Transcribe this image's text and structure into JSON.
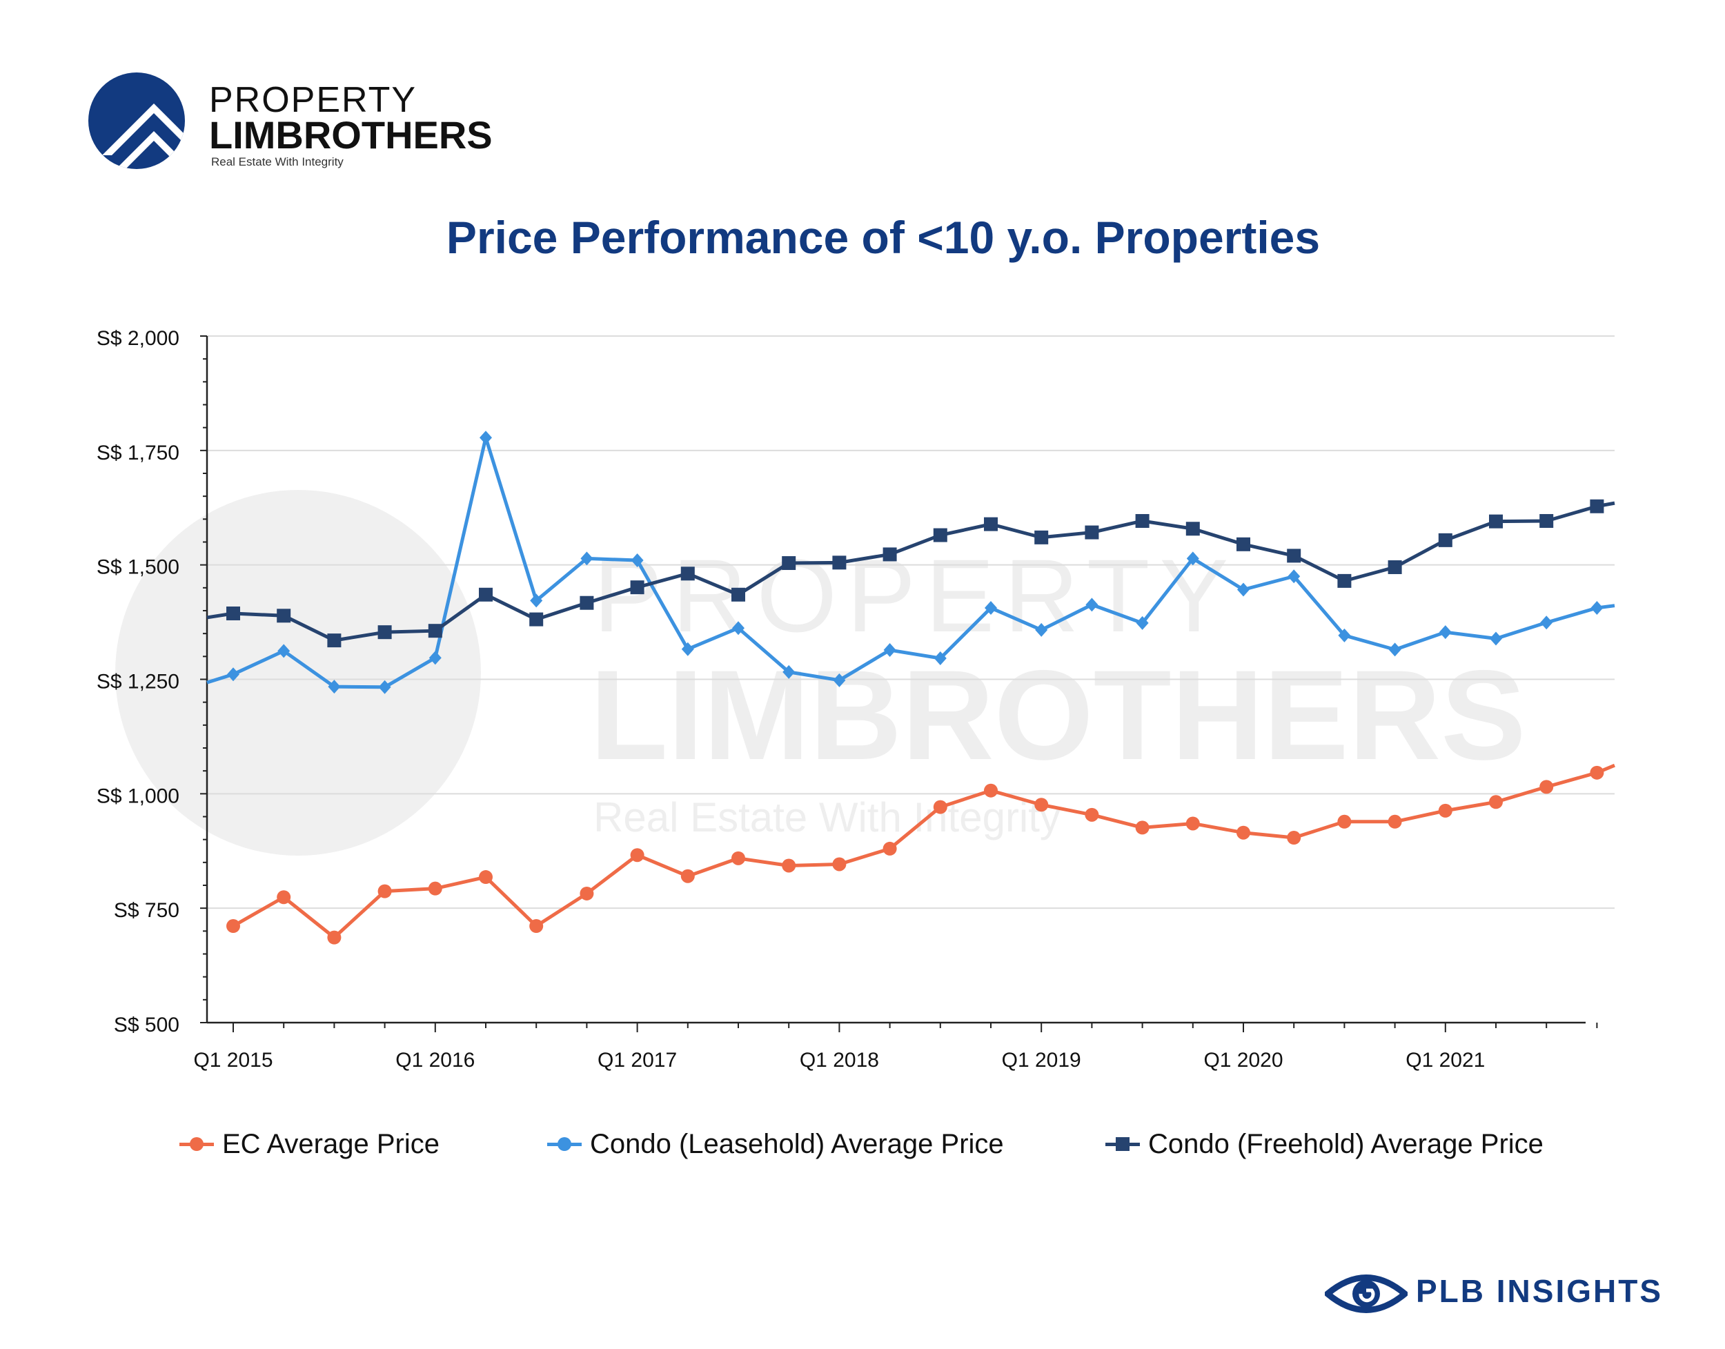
{
  "brand": {
    "logo_line1": "PROPERTY",
    "logo_line2": "LIMBROTHERS",
    "logo_tagline": "Real Estate With Integrity",
    "watermark_line1": "PROPERTY",
    "watermark_line2": "LIMBROTHERS",
    "watermark_tagline": "Real Estate With Integrity",
    "footer_text": "PLB INSIGHTS",
    "primary_color": "#123a80",
    "logo_icon": "chevron-roof-logo-icon",
    "footer_icon": "eye-logo-icon"
  },
  "chart_data": {
    "type": "line",
    "title": "Price Performance of <10 y.o. Properties",
    "xlabel": "",
    "ylabel": "",
    "ylim": [
      500,
      2000
    ],
    "y_ticks": [
      "S$ 500",
      "S$ 750",
      "S$ 1,000",
      "S$ 1,250",
      "S$ 1,500",
      "S$ 1,750",
      "S$ 2,000"
    ],
    "y_tick_values": [
      500,
      750,
      1000,
      1250,
      1500,
      1750,
      2000
    ],
    "x_tick_labels": [
      "Q1 2015",
      "Q1 2016",
      "Q1 2017",
      "Q1 2018",
      "Q1 2019",
      "Q1 2020",
      "Q1 2021"
    ],
    "categories": [
      "Q1 2015",
      "Q2 2015",
      "Q3 2015",
      "Q4 2015",
      "Q1 2016",
      "Q2 2016",
      "Q3 2016",
      "Q4 2016",
      "Q1 2017",
      "Q2 2017",
      "Q3 2017",
      "Q4 2017",
      "Q1 2018",
      "Q2 2018",
      "Q3 2018",
      "Q4 2018",
      "Q1 2019",
      "Q2 2019",
      "Q3 2019",
      "Q4 2019",
      "Q1 2020",
      "Q2 2020",
      "Q3 2020",
      "Q4 2020",
      "Q1 2021",
      "Q2 2021",
      "Q3 2021",
      "Q4 2021"
    ],
    "grid": true,
    "legend_position": "bottom",
    "series": [
      {
        "name": "EC Average Price",
        "color": "#ef6b47",
        "marker": "circle",
        "values": [
          711,
          774,
          686,
          787,
          793,
          818,
          711,
          782,
          866,
          820,
          859,
          843,
          846,
          880,
          971,
          1007,
          976,
          954,
          926,
          935,
          915,
          904,
          939,
          939,
          963,
          982,
          1015,
          1046
        ],
        "end_value": 1062
      },
      {
        "name": "Condo (Leasehold) Average Price",
        "color": "#3c92e0",
        "marker": "diamond",
        "start_value": 1243,
        "values": [
          1261,
          1312,
          1234,
          1233,
          1297,
          1778,
          1422,
          1514,
          1510,
          1316,
          1362,
          1266,
          1248,
          1314,
          1296,
          1406,
          1358,
          1413,
          1373,
          1514,
          1446,
          1475,
          1346,
          1315,
          1353,
          1339,
          1374,
          1406
        ],
        "end_value": 1411
      },
      {
        "name": "Condo (Freehold) Average Price",
        "color": "#26436f",
        "marker": "square",
        "start_value": 1385,
        "values": [
          1394,
          1389,
          1335,
          1353,
          1356,
          1435,
          1381,
          1417,
          1451,
          1481,
          1435,
          1504,
          1505,
          1523,
          1565,
          1589,
          1560,
          1571,
          1596,
          1579,
          1545,
          1520,
          1465,
          1495,
          1554,
          1595,
          1596,
          1628
        ],
        "end_value": 1635
      }
    ]
  }
}
